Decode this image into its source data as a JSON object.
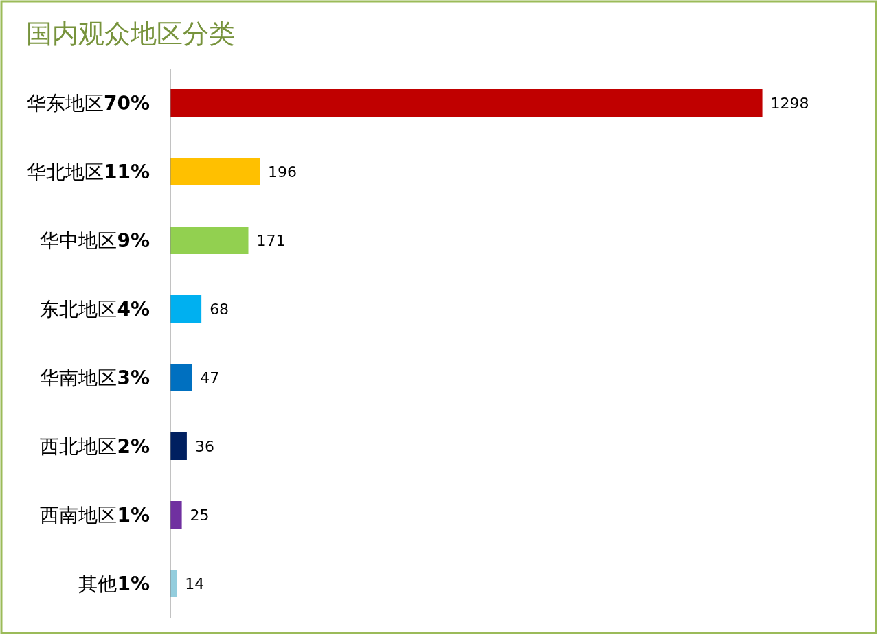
{
  "chart_data": {
    "type": "bar",
    "orientation": "horizontal",
    "title": "国内观众地区分类",
    "categories": [
      "华东地区70%",
      "华北地区11%",
      "华中地区9%",
      "东北地区4%",
      "华南地区3%",
      "西北地区2%",
      "西南地区1%",
      "其他1%"
    ],
    "values": [
      1298,
      196,
      171,
      68,
      47,
      36,
      25,
      14
    ],
    "colors": [
      "#c00000",
      "#ffc000",
      "#92d050",
      "#00b0f0",
      "#0070c0",
      "#002060",
      "#7030a0",
      "#93cddd"
    ],
    "data_labels": true
  }
}
